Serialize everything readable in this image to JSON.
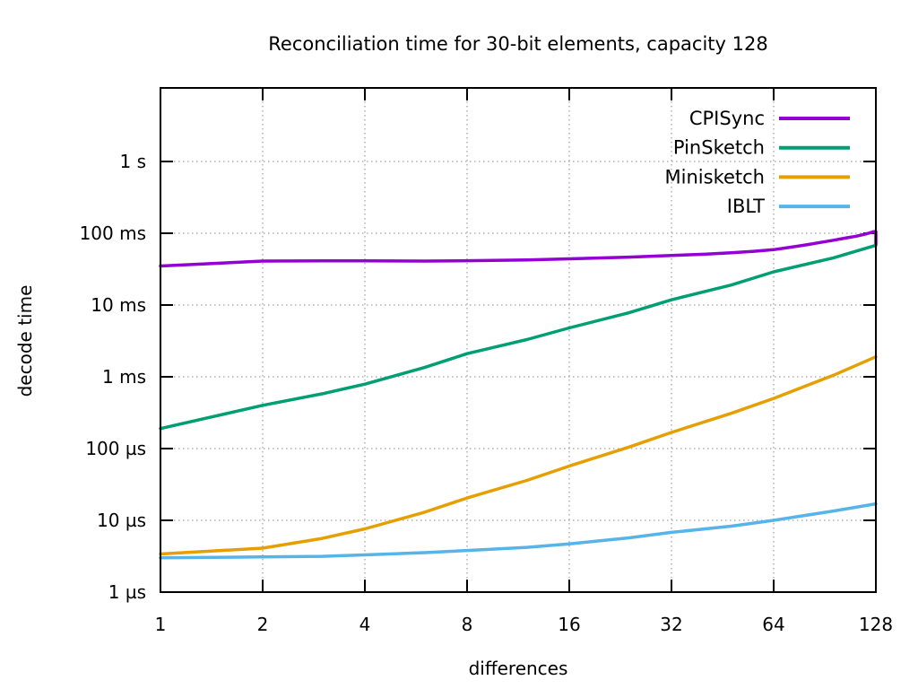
{
  "chart_data": {
    "type": "line",
    "title": "Reconciliation time for 30-bit elements, capacity 128",
    "xlabel": "differences",
    "ylabel": "decode time",
    "x_scale": "log2",
    "y_scale": "log10",
    "xlim": [
      1,
      128
    ],
    "ylim_seconds": [
      1e-06,
      11.0
    ],
    "grid": true,
    "legend_position": "top-right-inside",
    "x_ticks": [
      {
        "label": "1",
        "value": 1
      },
      {
        "label": "2",
        "value": 2
      },
      {
        "label": "4",
        "value": 4
      },
      {
        "label": "8",
        "value": 8
      },
      {
        "label": "16",
        "value": 16
      },
      {
        "label": "32",
        "value": 32
      },
      {
        "label": "64",
        "value": 64
      },
      {
        "label": "128",
        "value": 128
      }
    ],
    "y_ticks": [
      {
        "label": "1 s",
        "seconds": 1
      },
      {
        "label": "100 ms",
        "seconds": 0.1
      },
      {
        "label": "10 ms",
        "seconds": 0.01
      },
      {
        "label": "1 ms",
        "seconds": 0.001
      },
      {
        "label": "100 µs",
        "seconds": 0.0001
      },
      {
        "label": "10 µs",
        "seconds": 1e-05
      },
      {
        "label": "1 µs",
        "seconds": 1e-06
      }
    ],
    "series": [
      {
        "name": "CPISync",
        "color": "#9400d3",
        "points": [
          [
            1,
            0.035
          ],
          [
            2,
            0.041
          ],
          [
            3,
            0.0412
          ],
          [
            4,
            0.0413
          ],
          [
            6,
            0.041
          ],
          [
            8,
            0.0415
          ],
          [
            12,
            0.0425
          ],
          [
            16,
            0.044
          ],
          [
            24,
            0.0465
          ],
          [
            32,
            0.049
          ],
          [
            40,
            0.051
          ],
          [
            48,
            0.0535
          ],
          [
            56,
            0.056
          ],
          [
            64,
            0.059
          ],
          [
            72,
            0.064
          ],
          [
            80,
            0.069
          ],
          [
            88,
            0.0745
          ],
          [
            96,
            0.08
          ],
          [
            104,
            0.0855
          ],
          [
            112,
            0.091
          ],
          [
            120,
            0.098
          ],
          [
            126,
            0.105
          ],
          [
            128,
            0.1055
          ],
          [
            128,
            0.0695
          ]
        ]
      },
      {
        "name": "PinSketch",
        "color": "#009e73",
        "points": [
          [
            1,
            0.00019
          ],
          [
            2,
            0.0004
          ],
          [
            3,
            0.00058
          ],
          [
            4,
            0.00079
          ],
          [
            6,
            0.00135
          ],
          [
            8,
            0.0021
          ],
          [
            12,
            0.0033
          ],
          [
            16,
            0.0048
          ],
          [
            24,
            0.0078
          ],
          [
            32,
            0.0118
          ],
          [
            48,
            0.019
          ],
          [
            64,
            0.029
          ],
          [
            96,
            0.0455
          ],
          [
            128,
            0.068
          ]
        ]
      },
      {
        "name": "Minisketch",
        "color": "#e69f00",
        "points": [
          [
            1,
            3.4e-06
          ],
          [
            2,
            4.1e-06
          ],
          [
            3,
            5.6e-06
          ],
          [
            4,
            7.6e-06
          ],
          [
            6,
            1.3e-05
          ],
          [
            8,
            2.05e-05
          ],
          [
            12,
            3.6e-05
          ],
          [
            16,
            5.7e-05
          ],
          [
            24,
            0.000105
          ],
          [
            32,
            0.000168
          ],
          [
            48,
            0.00031
          ],
          [
            64,
            0.0005
          ],
          [
            96,
            0.00105
          ],
          [
            128,
            0.0019
          ]
        ]
      },
      {
        "name": "IBLT",
        "color": "#56b4e9",
        "points": [
          [
            1,
            3e-06
          ],
          [
            2,
            3.1e-06
          ],
          [
            3,
            3.15e-06
          ],
          [
            4,
            3.3e-06
          ],
          [
            6,
            3.55e-06
          ],
          [
            8,
            3.8e-06
          ],
          [
            12,
            4.2e-06
          ],
          [
            16,
            4.7e-06
          ],
          [
            24,
            5.7e-06
          ],
          [
            32,
            6.8e-06
          ],
          [
            48,
            8.3e-06
          ],
          [
            64,
            1e-05
          ],
          [
            96,
            1.35e-05
          ],
          [
            128,
            1.7e-05
          ]
        ]
      }
    ],
    "colors": {
      "background": "#ffffff",
      "border": "#000000",
      "grid": "#b0b0b0",
      "text": "#000000"
    }
  }
}
